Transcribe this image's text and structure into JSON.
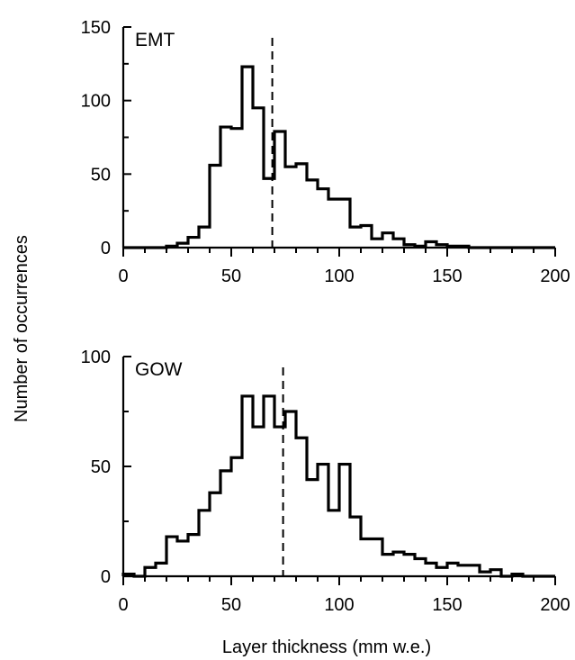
{
  "chart_data": {
    "type": "histogram",
    "ylabel": "Number of occurrences",
    "xlabel": "Layer thickness  (mm w.e.)",
    "bin_width": 5,
    "panels": [
      {
        "label": "EMT",
        "xlim": [
          0,
          200
        ],
        "ylim": [
          0,
          150
        ],
        "xticks": [
          0,
          50,
          100,
          150,
          200
        ],
        "yticks": [
          0,
          50,
          100,
          150
        ],
        "reference_line_x": 69,
        "x": [
          0,
          5,
          10,
          15,
          20,
          25,
          30,
          35,
          40,
          45,
          50,
          55,
          60,
          65,
          70,
          75,
          80,
          85,
          90,
          95,
          100,
          105,
          110,
          115,
          120,
          125,
          130,
          135,
          140,
          145,
          150,
          155,
          160,
          165,
          170,
          175,
          180,
          185,
          190,
          195
        ],
        "values": [
          0,
          0,
          0,
          0,
          1,
          3,
          7,
          14,
          56,
          82,
          81,
          123,
          95,
          47,
          79,
          55,
          57,
          46,
          40,
          33,
          33,
          14,
          15,
          6,
          10,
          6,
          2,
          1,
          4,
          2,
          1,
          1,
          0,
          0,
          0,
          0,
          0,
          0,
          0,
          0
        ]
      },
      {
        "label": "GOW",
        "xlim": [
          0,
          200
        ],
        "ylim": [
          0,
          100
        ],
        "xticks": [
          0,
          50,
          100,
          150,
          200
        ],
        "yticks": [
          0,
          50,
          100
        ],
        "reference_line_x": 74,
        "x": [
          0,
          5,
          10,
          15,
          20,
          25,
          30,
          35,
          40,
          45,
          50,
          55,
          60,
          65,
          70,
          75,
          80,
          85,
          90,
          95,
          100,
          105,
          110,
          115,
          120,
          125,
          130,
          135,
          140,
          145,
          150,
          155,
          160,
          165,
          170,
          175,
          180,
          185,
          190,
          195
        ],
        "values": [
          1,
          0,
          4,
          6,
          18,
          16,
          19,
          30,
          38,
          48,
          54,
          82,
          68,
          82,
          68,
          75,
          63,
          44,
          51,
          30,
          51,
          27,
          17,
          17,
          10,
          11,
          10,
          8,
          6,
          4,
          6,
          5,
          5,
          2,
          3,
          0,
          1,
          0,
          0,
          0
        ]
      }
    ]
  }
}
